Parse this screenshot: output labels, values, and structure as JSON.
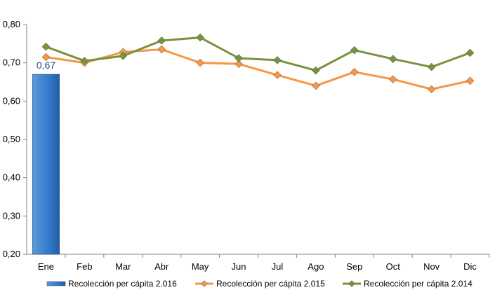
{
  "chart_data": {
    "type": "bar-line-combo",
    "categories": [
      "Ene",
      "Feb",
      "Mar",
      "Abr",
      "May",
      "Jun",
      "Jul",
      "Ago",
      "Sep",
      "Oct",
      "Nov",
      "Dic"
    ],
    "ylim": [
      0.2,
      0.8
    ],
    "yticks": [
      "0,20",
      "0,30",
      "0,40",
      "0,50",
      "0,60",
      "0,70",
      "0,80"
    ],
    "grid": false,
    "legend_position": "bottom",
    "series": [
      {
        "name": "Recolección per cápita 2.016",
        "kind": "bar",
        "color": "#2e75b6",
        "values": [
          0.67,
          null,
          null,
          null,
          null,
          null,
          null,
          null,
          null,
          null,
          null,
          null
        ],
        "data_labels": [
          "0,67",
          null,
          null,
          null,
          null,
          null,
          null,
          null,
          null,
          null,
          null,
          null
        ]
      },
      {
        "name": "Recolección per cápita 2.015",
        "kind": "line",
        "color": "#f79646",
        "values": [
          0.715,
          0.7,
          0.728,
          0.735,
          0.7,
          0.697,
          0.668,
          0.64,
          0.676,
          0.657,
          0.631,
          0.653
        ]
      },
      {
        "name": "Recolección per cápita 2.014",
        "kind": "line",
        "color": "#77933c",
        "values": [
          0.742,
          0.705,
          0.718,
          0.758,
          0.766,
          0.712,
          0.707,
          0.68,
          0.733,
          0.71,
          0.689,
          0.726
        ]
      }
    ]
  }
}
